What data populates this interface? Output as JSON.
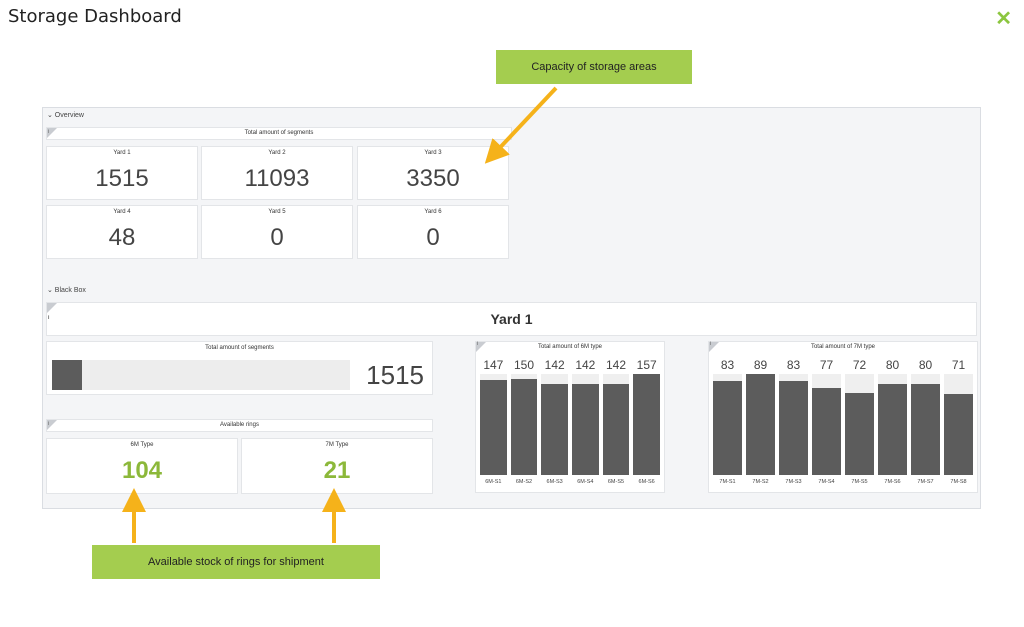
{
  "header": {
    "title": "Storage Dashboard",
    "close_icon": "close-icon",
    "accent": "#8cc63f"
  },
  "overview": {
    "section_label": "⌄ Overview",
    "panel_title": "Total amount of segments",
    "yards": [
      {
        "label": "Yard 1",
        "value": "1515"
      },
      {
        "label": "Yard 2",
        "value": "11093"
      },
      {
        "label": "Yard 3",
        "value": "3350"
      },
      {
        "label": "Yard 4",
        "value": "48"
      },
      {
        "label": "Yard 5",
        "value": "0"
      },
      {
        "label": "Yard 6",
        "value": "0"
      }
    ]
  },
  "blackbox": {
    "section_label": "⌄ Black Box",
    "yard_title": "Yard 1",
    "segments_panel": {
      "title": "Total amount of segments",
      "value": "1515",
      "fill_fraction": 0.1
    },
    "rings_panel": {
      "title": "Available rings",
      "types": [
        {
          "label": "6M Type",
          "value": "104"
        },
        {
          "label": "7M Type",
          "value": "21"
        }
      ]
    }
  },
  "chart_data": [
    {
      "type": "bar",
      "title": "Total amount of 6M type",
      "categories": [
        "6M-S1",
        "6M-S2",
        "6M-S3",
        "6M-S4",
        "6M-S5",
        "6M-S6"
      ],
      "values": [
        147,
        150,
        142,
        142,
        142,
        157
      ],
      "ylim": [
        0,
        157
      ]
    },
    {
      "type": "bar",
      "title": "Total amount of 7M type",
      "categories": [
        "7M-S1",
        "7M-S2",
        "7M-S3",
        "7M-S4",
        "7M-S5",
        "7M-S6",
        "7M-S7",
        "7M-S8"
      ],
      "values": [
        83,
        89,
        83,
        77,
        72,
        80,
        80,
        71
      ],
      "ylim": [
        0,
        89
      ]
    }
  ],
  "callouts": {
    "capacity": "Capacity of storage areas",
    "stock": "Available stock of rings for shipment"
  }
}
